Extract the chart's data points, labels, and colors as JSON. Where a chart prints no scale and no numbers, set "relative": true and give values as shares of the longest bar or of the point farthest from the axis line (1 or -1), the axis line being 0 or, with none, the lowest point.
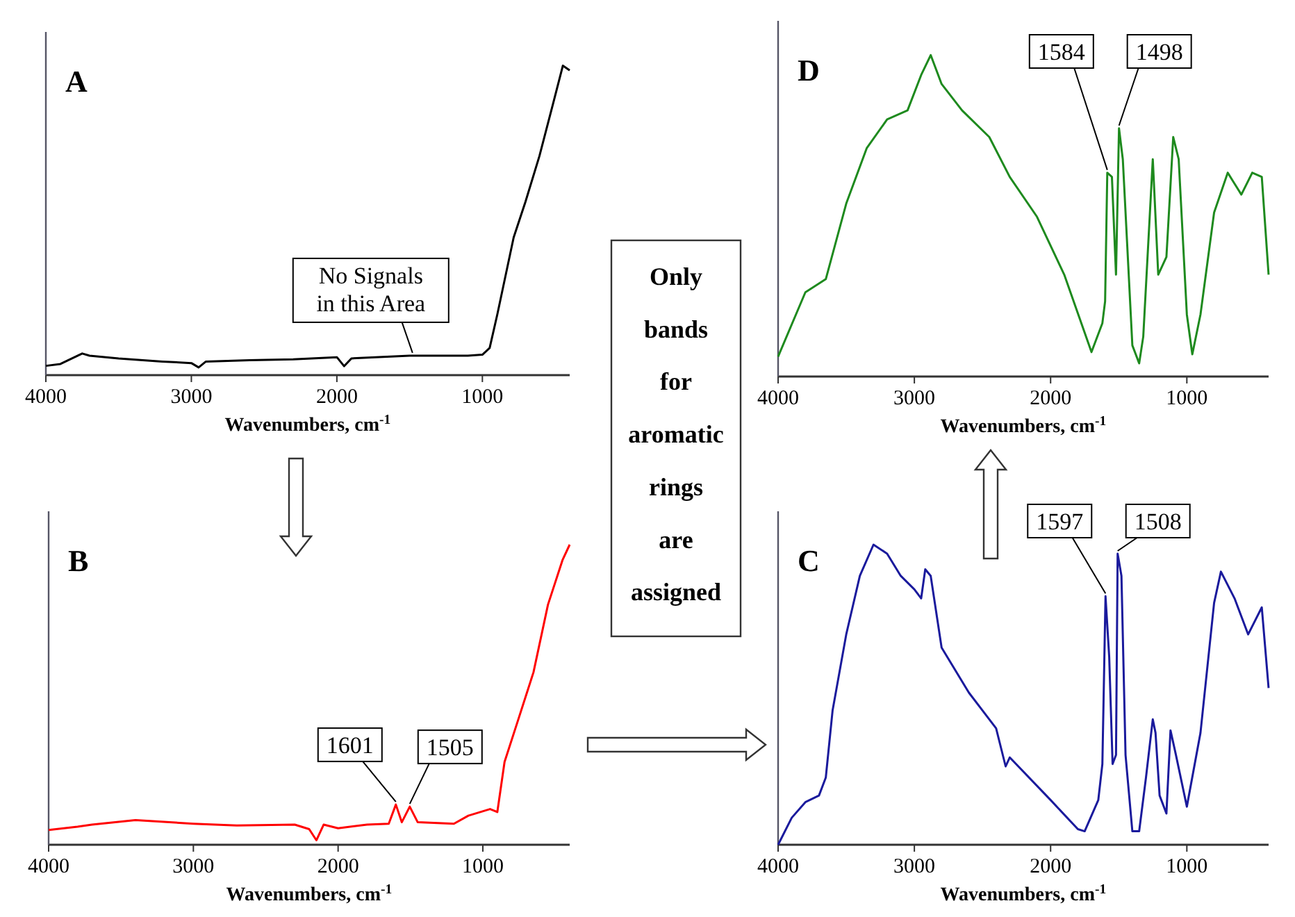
{
  "chart_data": [
    {
      "type": "line",
      "title": "A",
      "xlabel": "Wavenumbers, cm$^{-1}$",
      "relative": true,
      "xlim": [
        4000,
        400
      ],
      "xticks": [
        4000,
        3000,
        2000,
        1000
      ],
      "x": [
        4000,
        3900,
        3750,
        3700,
        3500,
        3200,
        3000,
        2950,
        2900,
        2600,
        2300,
        2000,
        1950,
        1900,
        1500,
        1100,
        1000,
        950,
        897,
        785,
        704,
        608,
        511,
        447,
        400
      ],
      "series": [
        {
          "color": "#000000",
          "values": [
            0.03,
            0.036,
            0.07,
            0.063,
            0.054,
            0.044,
            0.039,
            0.025,
            0.044,
            0.048,
            0.051,
            0.058,
            0.029,
            0.054,
            0.063,
            0.063,
            0.066,
            0.088,
            0.197,
            0.445,
            0.56,
            0.708,
            0.883,
            1.0,
            0.985
          ]
        }
      ],
      "annotations": [
        {
          "text": "No Signals in this Area",
          "x": 1480,
          "y": 0.063
        }
      ]
    },
    {
      "type": "line",
      "title": "D",
      "xlabel": "Wavenumbers, cm$^{-1}$",
      "relative": true,
      "xlim": [
        4000,
        400
      ],
      "xticks": [
        4000,
        3000,
        2000,
        1000
      ],
      "x": [
        4000,
        3800,
        3650,
        3500,
        3350,
        3200,
        3050,
        2950,
        2880,
        2800,
        2650,
        2450,
        2300,
        2100,
        1900,
        1700,
        1620,
        1600,
        1584,
        1550,
        1520,
        1498,
        1470,
        1400,
        1350,
        1320,
        1250,
        1210,
        1150,
        1100,
        1060,
        1000,
        960,
        900,
        800,
        700,
        600,
        520,
        450,
        400
      ],
      "series": [
        {
          "color": "#1e8a1e",
          "values": [
            0.062,
            0.262,
            0.303,
            0.538,
            0.71,
            0.8,
            0.828,
            0.938,
            1.0,
            0.91,
            0.828,
            0.745,
            0.621,
            0.497,
            0.317,
            0.076,
            0.166,
            0.234,
            0.634,
            0.621,
            0.317,
            0.772,
            0.676,
            0.097,
            0.041,
            0.124,
            0.676,
            0.317,
            0.372,
            0.745,
            0.676,
            0.193,
            0.069,
            0.193,
            0.51,
            0.634,
            0.566,
            0.634,
            0.621,
            0.317
          ]
        }
      ],
      "annotations": [
        {
          "text": "1584",
          "x": 1584,
          "y": 0.634
        },
        {
          "text": "1498",
          "x": 1498,
          "y": 0.772
        }
      ]
    },
    {
      "type": "other",
      "annotations": [
        "Only bands for aromatic rings are assigned"
      ]
    },
    {
      "type": "line",
      "title": "B",
      "xlabel": "Wavenumbers, cm$^{-1}$",
      "relative": true,
      "xlim": [
        4000,
        400
      ],
      "xticks": [
        4000,
        3000,
        2000,
        1000
      ],
      "x": [
        4000,
        3800,
        3700,
        3400,
        3000,
        2700,
        2300,
        2200,
        2150,
        2100,
        2000,
        1800,
        1650,
        1601,
        1560,
        1505,
        1450,
        1200,
        1100,
        950,
        900,
        850,
        750,
        650,
        550,
        450,
        400
      ],
      "series": [
        {
          "color": "#ff0000",
          "values": [
            0.049,
            0.06,
            0.067,
            0.082,
            0.07,
            0.064,
            0.067,
            0.052,
            0.015,
            0.067,
            0.055,
            0.067,
            0.07,
            0.134,
            0.075,
            0.127,
            0.075,
            0.07,
            0.097,
            0.119,
            0.109,
            0.276,
            0.425,
            0.575,
            0.8,
            0.948,
            1.0
          ]
        }
      ],
      "annotations": [
        {
          "text": "1601",
          "x": 1601,
          "y": 0.134
        },
        {
          "text": "1505",
          "x": 1505,
          "y": 0.127
        }
      ]
    },
    {
      "type": "line",
      "title": "C",
      "xlabel": "Wavenumbers, cm$^{-1}$",
      "relative": true,
      "xlim": [
        4000,
        400
      ],
      "xticks": [
        4000,
        3000,
        2000,
        1000
      ],
      "x": [
        4000,
        3900,
        3800,
        3700,
        3650,
        3600,
        3500,
        3400,
        3300,
        3200,
        3100,
        3000,
        2950,
        2920,
        2880,
        2850,
        2800,
        2600,
        2400,
        2330,
        2300,
        2000,
        1800,
        1750,
        1650,
        1620,
        1597,
        1570,
        1545,
        1520,
        1508,
        1480,
        1450,
        1400,
        1350,
        1300,
        1250,
        1230,
        1200,
        1150,
        1120,
        1080,
        1000,
        900,
        800,
        750,
        650,
        550,
        450,
        400
      ],
      "series": [
        {
          "color": "#1a1a9c",
          "values": [
            0.0,
            0.09,
            0.142,
            0.164,
            0.224,
            0.448,
            0.701,
            0.896,
            1.0,
            0.97,
            0.896,
            0.851,
            0.821,
            0.918,
            0.896,
            0.806,
            0.657,
            0.507,
            0.388,
            0.261,
            0.291,
            0.149,
            0.052,
            0.045,
            0.149,
            0.269,
            0.828,
            0.627,
            0.269,
            0.299,
            0.97,
            0.896,
            0.299,
            0.045,
            0.045,
            0.224,
            0.418,
            0.373,
            0.164,
            0.104,
            0.381,
            0.299,
            0.127,
            0.373,
            0.806,
            0.91,
            0.821,
            0.701,
            0.791,
            0.522
          ]
        }
      ],
      "annotations": [
        {
          "text": "1597",
          "x": 1597,
          "y": 0.828
        },
        {
          "text": "1508",
          "x": 1508,
          "y": 0.97
        }
      ]
    }
  ]
}
